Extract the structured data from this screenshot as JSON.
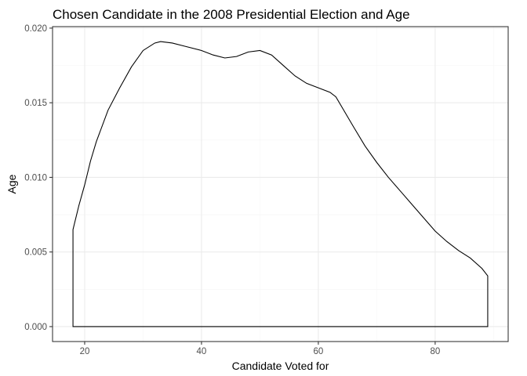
{
  "chart_data": {
    "type": "area",
    "title": "Chosen Candidate in the 2008 Presidential Election and Age",
    "xlabel": "Candidate Voted for",
    "ylabel": "Age",
    "xlim": [
      14.5,
      92.5
    ],
    "ylim": [
      -0.001,
      0.0201
    ],
    "x_ticks": [
      20,
      40,
      60,
      80
    ],
    "x_tick_labels": [
      "20",
      "40",
      "60",
      "80"
    ],
    "y_ticks": [
      0,
      0.005,
      0.01,
      0.015,
      0.02
    ],
    "y_tick_labels": [
      "0.000",
      "0.005",
      "0.010",
      "0.015",
      "0.020"
    ],
    "grid": true,
    "legend": "none",
    "fill": "none",
    "line_color": "#000000",
    "series": [
      {
        "x": [
          18,
          19,
          20,
          21,
          22,
          24,
          26,
          28,
          30,
          32,
          33,
          35,
          37,
          40,
          42,
          44,
          46,
          48,
          50,
          52,
          54,
          56,
          58,
          60,
          62,
          63,
          66,
          68,
          70,
          72,
          74,
          76,
          78,
          80,
          82,
          84,
          86,
          88,
          89
        ],
        "y": [
          0.0065,
          0.0081,
          0.0095,
          0.0111,
          0.0124,
          0.0145,
          0.016,
          0.0174,
          0.0185,
          0.019,
          0.0191,
          0.019,
          0.0188,
          0.0185,
          0.0182,
          0.018,
          0.0181,
          0.0184,
          0.0185,
          0.0182,
          0.0175,
          0.0168,
          0.0163,
          0.016,
          0.0157,
          0.0154,
          0.0134,
          0.0121,
          0.011,
          0.01,
          0.0091,
          0.0082,
          0.0073,
          0.0064,
          0.0057,
          0.0051,
          0.0046,
          0.0039,
          0.0034
        ]
      }
    ]
  }
}
